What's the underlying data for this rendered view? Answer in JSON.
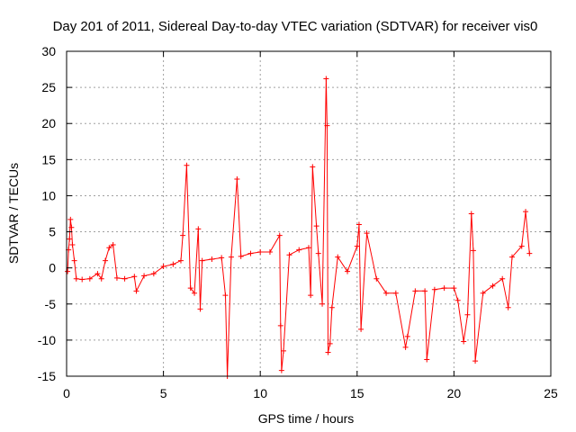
{
  "chart_data": {
    "type": "scatter",
    "title": "Day 201 of 2011, Sidereal Day-to-day VTEC variation (SDTVAR) for receiver vis0",
    "xlabel": "GPS time / hours",
    "ylabel": "SDTVAR / TECUs",
    "xlim": [
      0,
      25
    ],
    "ylim": [
      -15,
      30
    ],
    "xticks": [
      0,
      5,
      10,
      15,
      20,
      25
    ],
    "yticks": [
      -15,
      -10,
      -5,
      0,
      5,
      10,
      15,
      20,
      25,
      30
    ],
    "grid": true,
    "marker": "+",
    "color": "#ff0000",
    "series": [
      {
        "name": "SDTVAR",
        "points": [
          [
            0.05,
            -0.5
          ],
          [
            0.1,
            2.5
          ],
          [
            0.15,
            4.0
          ],
          [
            0.2,
            6.7
          ],
          [
            0.25,
            5.6
          ],
          [
            0.3,
            3.2
          ],
          [
            0.4,
            1.0
          ],
          [
            0.5,
            -1.5
          ],
          [
            0.8,
            -1.6
          ],
          [
            1.2,
            -1.5
          ],
          [
            1.6,
            -0.8
          ],
          [
            1.8,
            -1.5
          ],
          [
            2.0,
            1.0
          ],
          [
            2.2,
            2.8
          ],
          [
            2.4,
            3.2
          ],
          [
            2.6,
            -1.4
          ],
          [
            3.0,
            -1.5
          ],
          [
            3.5,
            -1.2
          ],
          [
            3.6,
            -3.2
          ],
          [
            4.0,
            -1.1
          ],
          [
            4.5,
            -0.8
          ],
          [
            5.0,
            0.2
          ],
          [
            5.5,
            0.5
          ],
          [
            5.9,
            1.0
          ],
          [
            6.0,
            4.5
          ],
          [
            6.2,
            14.2
          ],
          [
            6.4,
            -2.8
          ],
          [
            6.6,
            -3.5
          ],
          [
            6.8,
            5.4
          ],
          [
            6.9,
            -5.7
          ],
          [
            7.0,
            1.0
          ],
          [
            7.5,
            1.2
          ],
          [
            8.0,
            1.4
          ],
          [
            8.2,
            -3.8
          ],
          [
            8.3,
            -15.0
          ],
          [
            8.5,
            1.5
          ],
          [
            8.8,
            12.3
          ],
          [
            9.0,
            1.6
          ],
          [
            9.5,
            2.0
          ],
          [
            10.0,
            2.2
          ],
          [
            10.5,
            2.2
          ],
          [
            11.0,
            4.5
          ],
          [
            11.05,
            -8.0
          ],
          [
            11.1,
            -14.2
          ],
          [
            11.2,
            -11.5
          ],
          [
            11.5,
            1.8
          ],
          [
            12.0,
            2.5
          ],
          [
            12.5,
            2.8
          ],
          [
            12.6,
            -3.8
          ],
          [
            12.7,
            14.0
          ],
          [
            12.9,
            5.8
          ],
          [
            13.0,
            2.0
          ],
          [
            13.2,
            -5.0
          ],
          [
            13.4,
            26.2
          ],
          [
            13.45,
            19.7
          ],
          [
            13.5,
            -11.7
          ],
          [
            13.6,
            -10.5
          ],
          [
            13.7,
            -5.5
          ],
          [
            14.0,
            1.5
          ],
          [
            14.5,
            -0.5
          ],
          [
            15.0,
            3.0
          ],
          [
            15.1,
            6.0
          ],
          [
            15.2,
            -8.5
          ],
          [
            15.5,
            4.8
          ],
          [
            16.0,
            -1.5
          ],
          [
            16.5,
            -3.5
          ],
          [
            17.0,
            -3.5
          ],
          [
            17.5,
            -11.0
          ],
          [
            17.6,
            -9.5
          ],
          [
            18.0,
            -3.2
          ],
          [
            18.5,
            -3.2
          ],
          [
            18.6,
            -12.7
          ],
          [
            19.0,
            -3.0
          ],
          [
            19.5,
            -2.8
          ],
          [
            20.0,
            -2.8
          ],
          [
            20.2,
            -4.5
          ],
          [
            20.5,
            -10.2
          ],
          [
            20.7,
            -6.5
          ],
          [
            20.9,
            7.5
          ],
          [
            21.0,
            2.4
          ],
          [
            21.1,
            -12.9
          ],
          [
            21.5,
            -3.5
          ],
          [
            22.0,
            -2.5
          ],
          [
            22.5,
            -1.5
          ],
          [
            22.8,
            -5.5
          ],
          [
            23.0,
            1.5
          ],
          [
            23.5,
            3.0
          ],
          [
            23.7,
            7.8
          ],
          [
            23.9,
            2.0
          ]
        ]
      }
    ]
  }
}
